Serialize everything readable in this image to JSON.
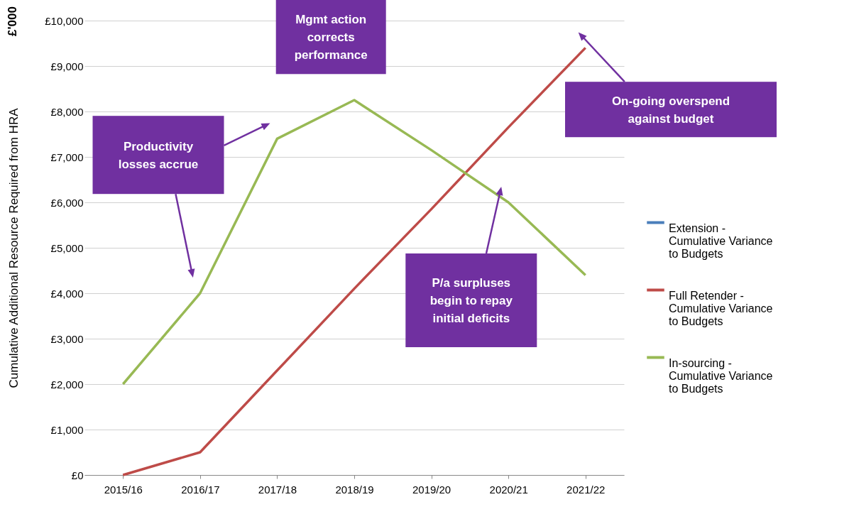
{
  "chart_data": {
    "type": "line",
    "ylabel": "Cumulative Additional Resource Required from HRA",
    "categories": [
      "2015/16",
      "2016/17",
      "2017/18",
      "2018/19",
      "2019/20",
      "2020/21",
      "2021/22"
    ],
    "series": [
      {
        "name": "Extension - Cumulative Variance to Budgets",
        "color": "#4a7ebb",
        "values": [
          null,
          null,
          null,
          null,
          null,
          null,
          null
        ]
      },
      {
        "name": "Full Retender - Cumulative Variance to Budgets",
        "color": "#be4b48",
        "values": [
          0,
          500,
          2300,
          4100,
          5850,
          7650,
          9400
        ]
      },
      {
        "name": "In-sourcing - Cumulative Variance to Budgets",
        "color": "#98b954",
        "values": [
          2000,
          4000,
          7400,
          8250,
          7150,
          6000,
          4400
        ]
      }
    ],
    "ylim": [
      0,
      10000
    ],
    "yticks": [
      {
        "value": 0,
        "label": "£0"
      },
      {
        "value": 1000,
        "label": "£1,000"
      },
      {
        "value": 2000,
        "label": "£2,000"
      },
      {
        "value": 3000,
        "label": "£3,000"
      },
      {
        "value": 4000,
        "label": "£4,000"
      },
      {
        "value": 5000,
        "label": "£5,000"
      },
      {
        "value": 6000,
        "label": "£6,000"
      },
      {
        "value": 7000,
        "label": "£7,000"
      },
      {
        "value": 8000,
        "label": "£8,000"
      },
      {
        "value": 9000,
        "label": "£9,000"
      },
      {
        "value": 10000,
        "label": "£10,000"
      }
    ],
    "grid": "y",
    "legend": "right",
    "marker": "none",
    "line_style": "solid",
    "annotations": [
      "Productivity losses accrue",
      "Mgmt action corrects performance",
      "On-going overspend against budget",
      "P/a surpluses begin to repay initial deficits",
      "£'000"
    ]
  }
}
